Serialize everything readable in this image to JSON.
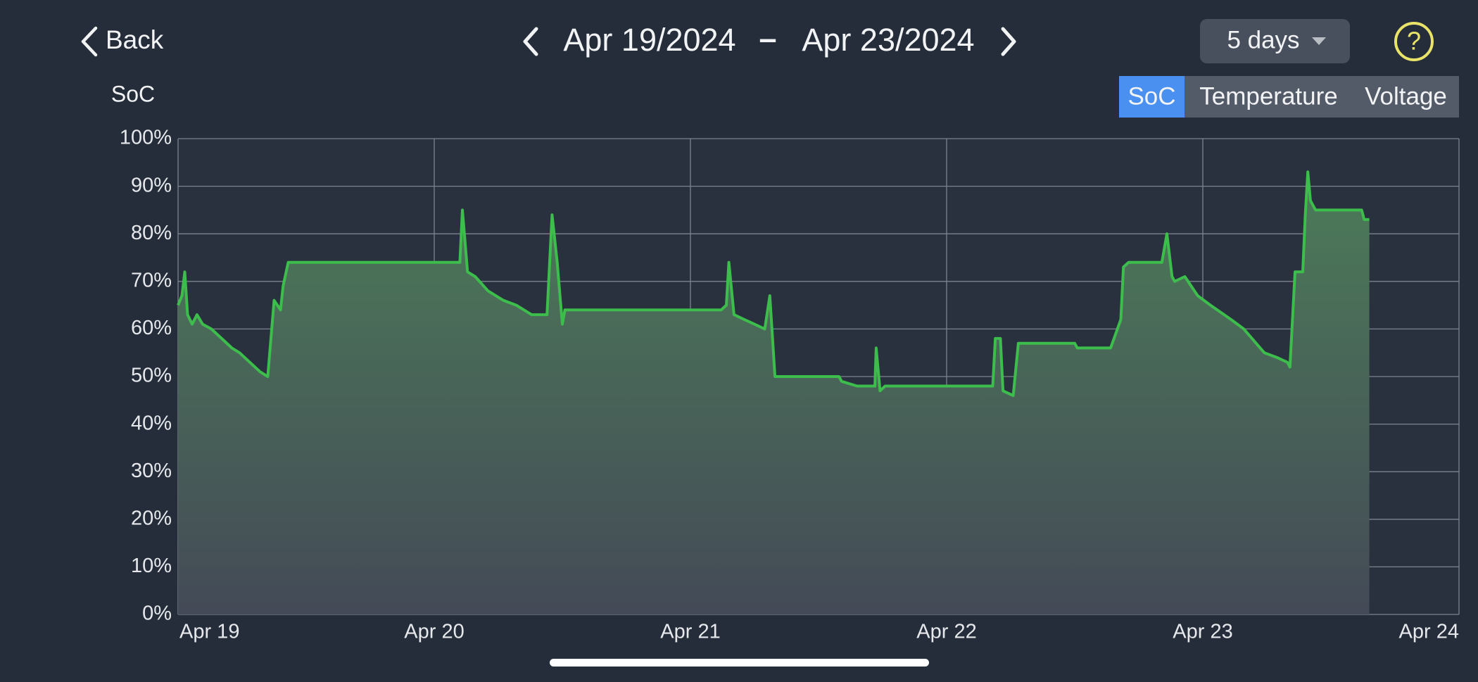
{
  "header": {
    "back": "Back",
    "range_start": "Apr 19/2024",
    "range_sep": "–",
    "range_end": "Apr 23/2024",
    "period": "5 days",
    "help": "?"
  },
  "tabs": {
    "items": [
      "SoC",
      "Temperature",
      "Voltage"
    ],
    "active": 0
  },
  "chart_data": {
    "type": "line",
    "y_label": "SoC",
    "color": "#3dbd4c",
    "grid": true,
    "fill": true,
    "x": [
      0,
      0.015,
      0.026,
      0.037,
      0.055,
      0.074,
      0.096,
      0.13,
      0.17,
      0.21,
      0.24,
      0.28,
      0.32,
      0.35,
      0.375,
      0.4,
      0.41,
      0.43,
      1.1,
      1.11,
      1.13,
      1.16,
      1.21,
      1.27,
      1.32,
      1.38,
      1.44,
      1.46,
      1.48,
      1.5,
      1.51,
      2.12,
      2.14,
      2.15,
      2.17,
      2.21,
      2.25,
      2.29,
      2.31,
      2.33,
      2.58,
      2.59,
      2.65,
      2.72,
      2.725,
      2.74,
      2.76,
      3.18,
      3.19,
      3.21,
      3.22,
      3.26,
      3.28,
      3.5,
      3.51,
      3.64,
      3.68,
      3.69,
      3.71,
      3.84,
      3.86,
      3.88,
      3.89,
      3.93,
      3.98,
      4.03,
      4.11,
      4.16,
      4.24,
      4.29,
      4.33,
      4.34,
      4.36,
      4.39,
      4.4,
      4.41,
      4.42,
      4.44,
      4.62,
      4.63,
      4.65
    ],
    "values": [
      65,
      67,
      72,
      63,
      61,
      63,
      61,
      60,
      58,
      56,
      55,
      53,
      51,
      50,
      66,
      64,
      69,
      74,
      74,
      85,
      72,
      71,
      68,
      66,
      65,
      63,
      63,
      84,
      74,
      61,
      64,
      64,
      65,
      74,
      63,
      62,
      61,
      60,
      67,
      50,
      50,
      49,
      48,
      48,
      56,
      47,
      48,
      48,
      58,
      58,
      47,
      46,
      57,
      57,
      56,
      56,
      62,
      73,
      74,
      74,
      80,
      71,
      70,
      71,
      67,
      65,
      62,
      60,
      55,
      54,
      53,
      52,
      72,
      72,
      84,
      93,
      87,
      85,
      85,
      83,
      83
    ],
    "xlim": [
      0,
      5
    ],
    "xticks": [
      {
        "value": 0,
        "label": "Apr 19"
      },
      {
        "value": 1,
        "label": "Apr 20"
      },
      {
        "value": 2,
        "label": "Apr 21"
      },
      {
        "value": 3,
        "label": "Apr 22"
      },
      {
        "value": 4,
        "label": "Apr 23"
      },
      {
        "value": 5,
        "label": "Apr 24"
      }
    ],
    "ylim": [
      0,
      100
    ],
    "yticks": [
      {
        "value": 0,
        "label": "0%"
      },
      {
        "value": 10,
        "label": "10%"
      },
      {
        "value": 20,
        "label": "20%"
      },
      {
        "value": 30,
        "label": "30%"
      },
      {
        "value": 40,
        "label": "40%"
      },
      {
        "value": 50,
        "label": "50%"
      },
      {
        "value": 60,
        "label": "60%"
      },
      {
        "value": 70,
        "label": "70%"
      },
      {
        "value": 80,
        "label": "80%"
      },
      {
        "value": 90,
        "label": "90%"
      },
      {
        "value": 100,
        "label": "100%"
      }
    ]
  }
}
